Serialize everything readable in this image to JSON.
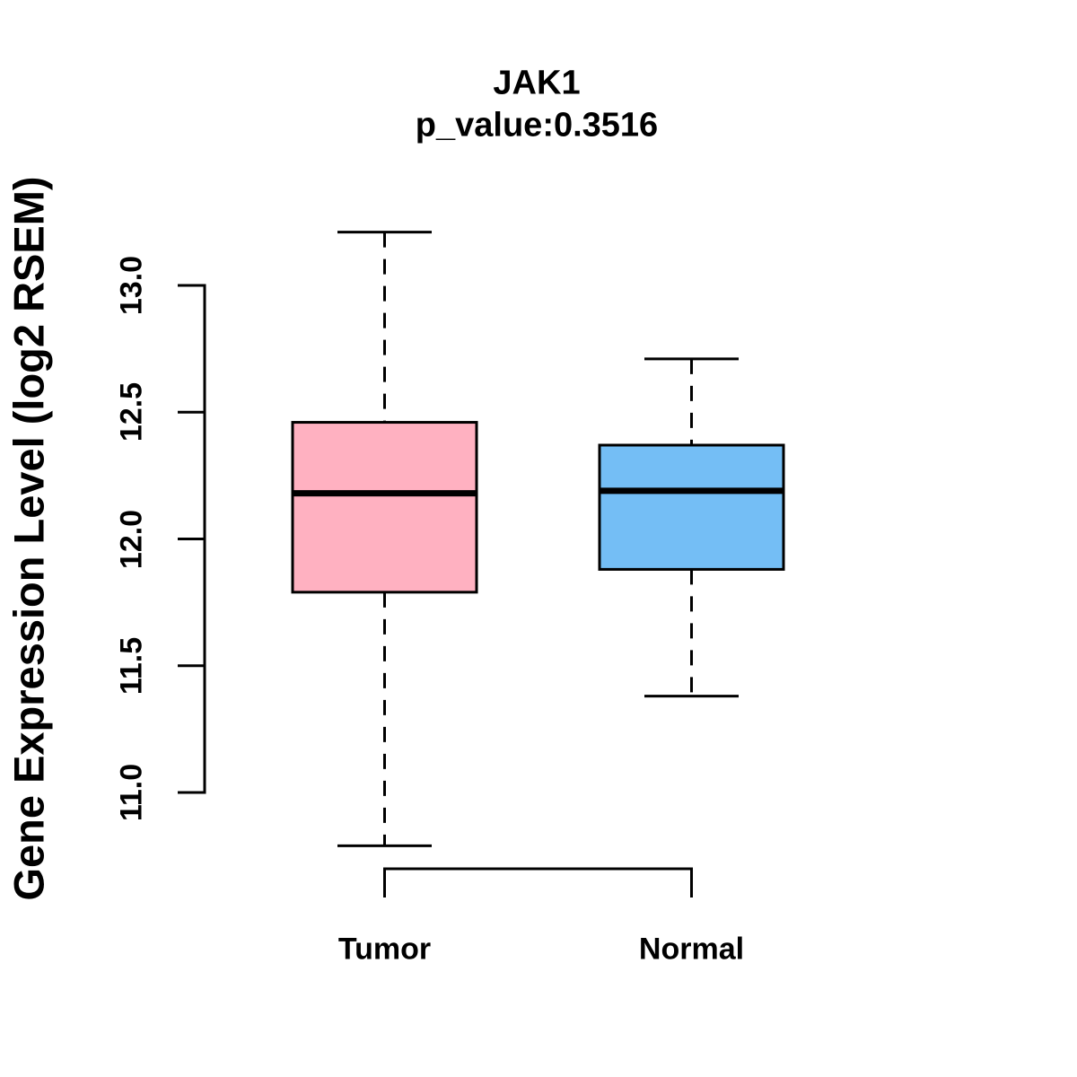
{
  "chart_data": {
    "type": "boxplot",
    "title": "JAK1",
    "subtitle": "p_value:0.3516",
    "ylabel": "Gene Expression Level (log2 RSEM)",
    "xlabel": "",
    "ylim": [
      11.0,
      13.0
    ],
    "grid": false,
    "legend": "none",
    "yticks": [
      {
        "label": "11.0",
        "value": 11.0
      },
      {
        "label": "11.5",
        "value": 11.5
      },
      {
        "label": "12.0",
        "value": 12.0
      },
      {
        "label": "12.5",
        "value": 12.5
      },
      {
        "label": "13.0",
        "value": 13.0
      }
    ],
    "groups": [
      {
        "label": "Tumor",
        "fill_color": "#FFB1C1",
        "stats": {
          "lower_whisker": 10.79,
          "q1": 11.79,
          "median": 12.18,
          "q3": 12.46,
          "upper_whisker": 13.21
        }
      },
      {
        "label": "Normal",
        "fill_color": "#74BEF5",
        "stats": {
          "lower_whisker": 11.38,
          "q1": 11.88,
          "median": 12.19,
          "q3": 12.37,
          "upper_whisker": 12.71
        }
      }
    ],
    "colors": {
      "stroke": "#000000",
      "background": "#ffffff"
    }
  }
}
